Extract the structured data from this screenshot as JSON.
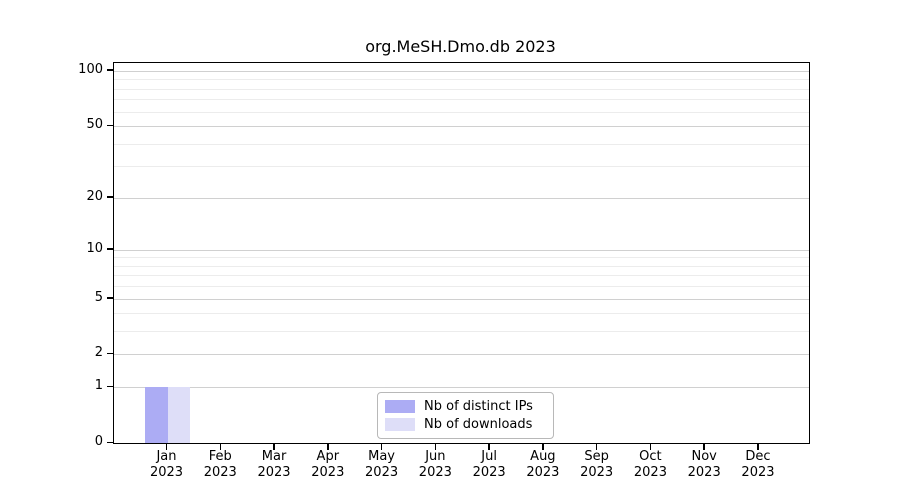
{
  "chart_data": {
    "type": "bar",
    "title": "org.MeSH.Dmo.db 2023",
    "x_ticks": [
      {
        "month": "Jan",
        "year": "2023"
      },
      {
        "month": "Feb",
        "year": "2023"
      },
      {
        "month": "Mar",
        "year": "2023"
      },
      {
        "month": "Apr",
        "year": "2023"
      },
      {
        "month": "May",
        "year": "2023"
      },
      {
        "month": "Jun",
        "year": "2023"
      },
      {
        "month": "Jul",
        "year": "2023"
      },
      {
        "month": "Aug",
        "year": "2023"
      },
      {
        "month": "Sep",
        "year": "2023"
      },
      {
        "month": "Oct",
        "year": "2023"
      },
      {
        "month": "Nov",
        "year": "2023"
      },
      {
        "month": "Dec",
        "year": "2023"
      }
    ],
    "series": [
      {
        "name": "Nb of distinct IPs",
        "color": "#acacf4",
        "values": [
          1,
          0,
          0,
          0,
          0,
          0,
          0,
          0,
          0,
          0,
          0,
          0
        ]
      },
      {
        "name": "Nb of downloads",
        "color": "#dedef8",
        "values": [
          1,
          0,
          0,
          0,
          0,
          0,
          0,
          0,
          0,
          0,
          0,
          0
        ]
      }
    ],
    "yscale": "log10(value+1)",
    "ylim": [
      0,
      110
    ],
    "yticks": [
      0,
      1,
      2,
      5,
      10,
      20,
      50,
      100
    ],
    "minor_gridlines": [
      3,
      4,
      6,
      7,
      8,
      9,
      30,
      40,
      60,
      70,
      80,
      90
    ],
    "grid": true,
    "legend_position": "lower center"
  },
  "colors": {
    "background": "#ffffff",
    "axis": "#000000",
    "major_grid": "#d0d0d0",
    "minor_grid": "#ececec",
    "legend_border": "#b8b8b8",
    "text": "#000000"
  }
}
